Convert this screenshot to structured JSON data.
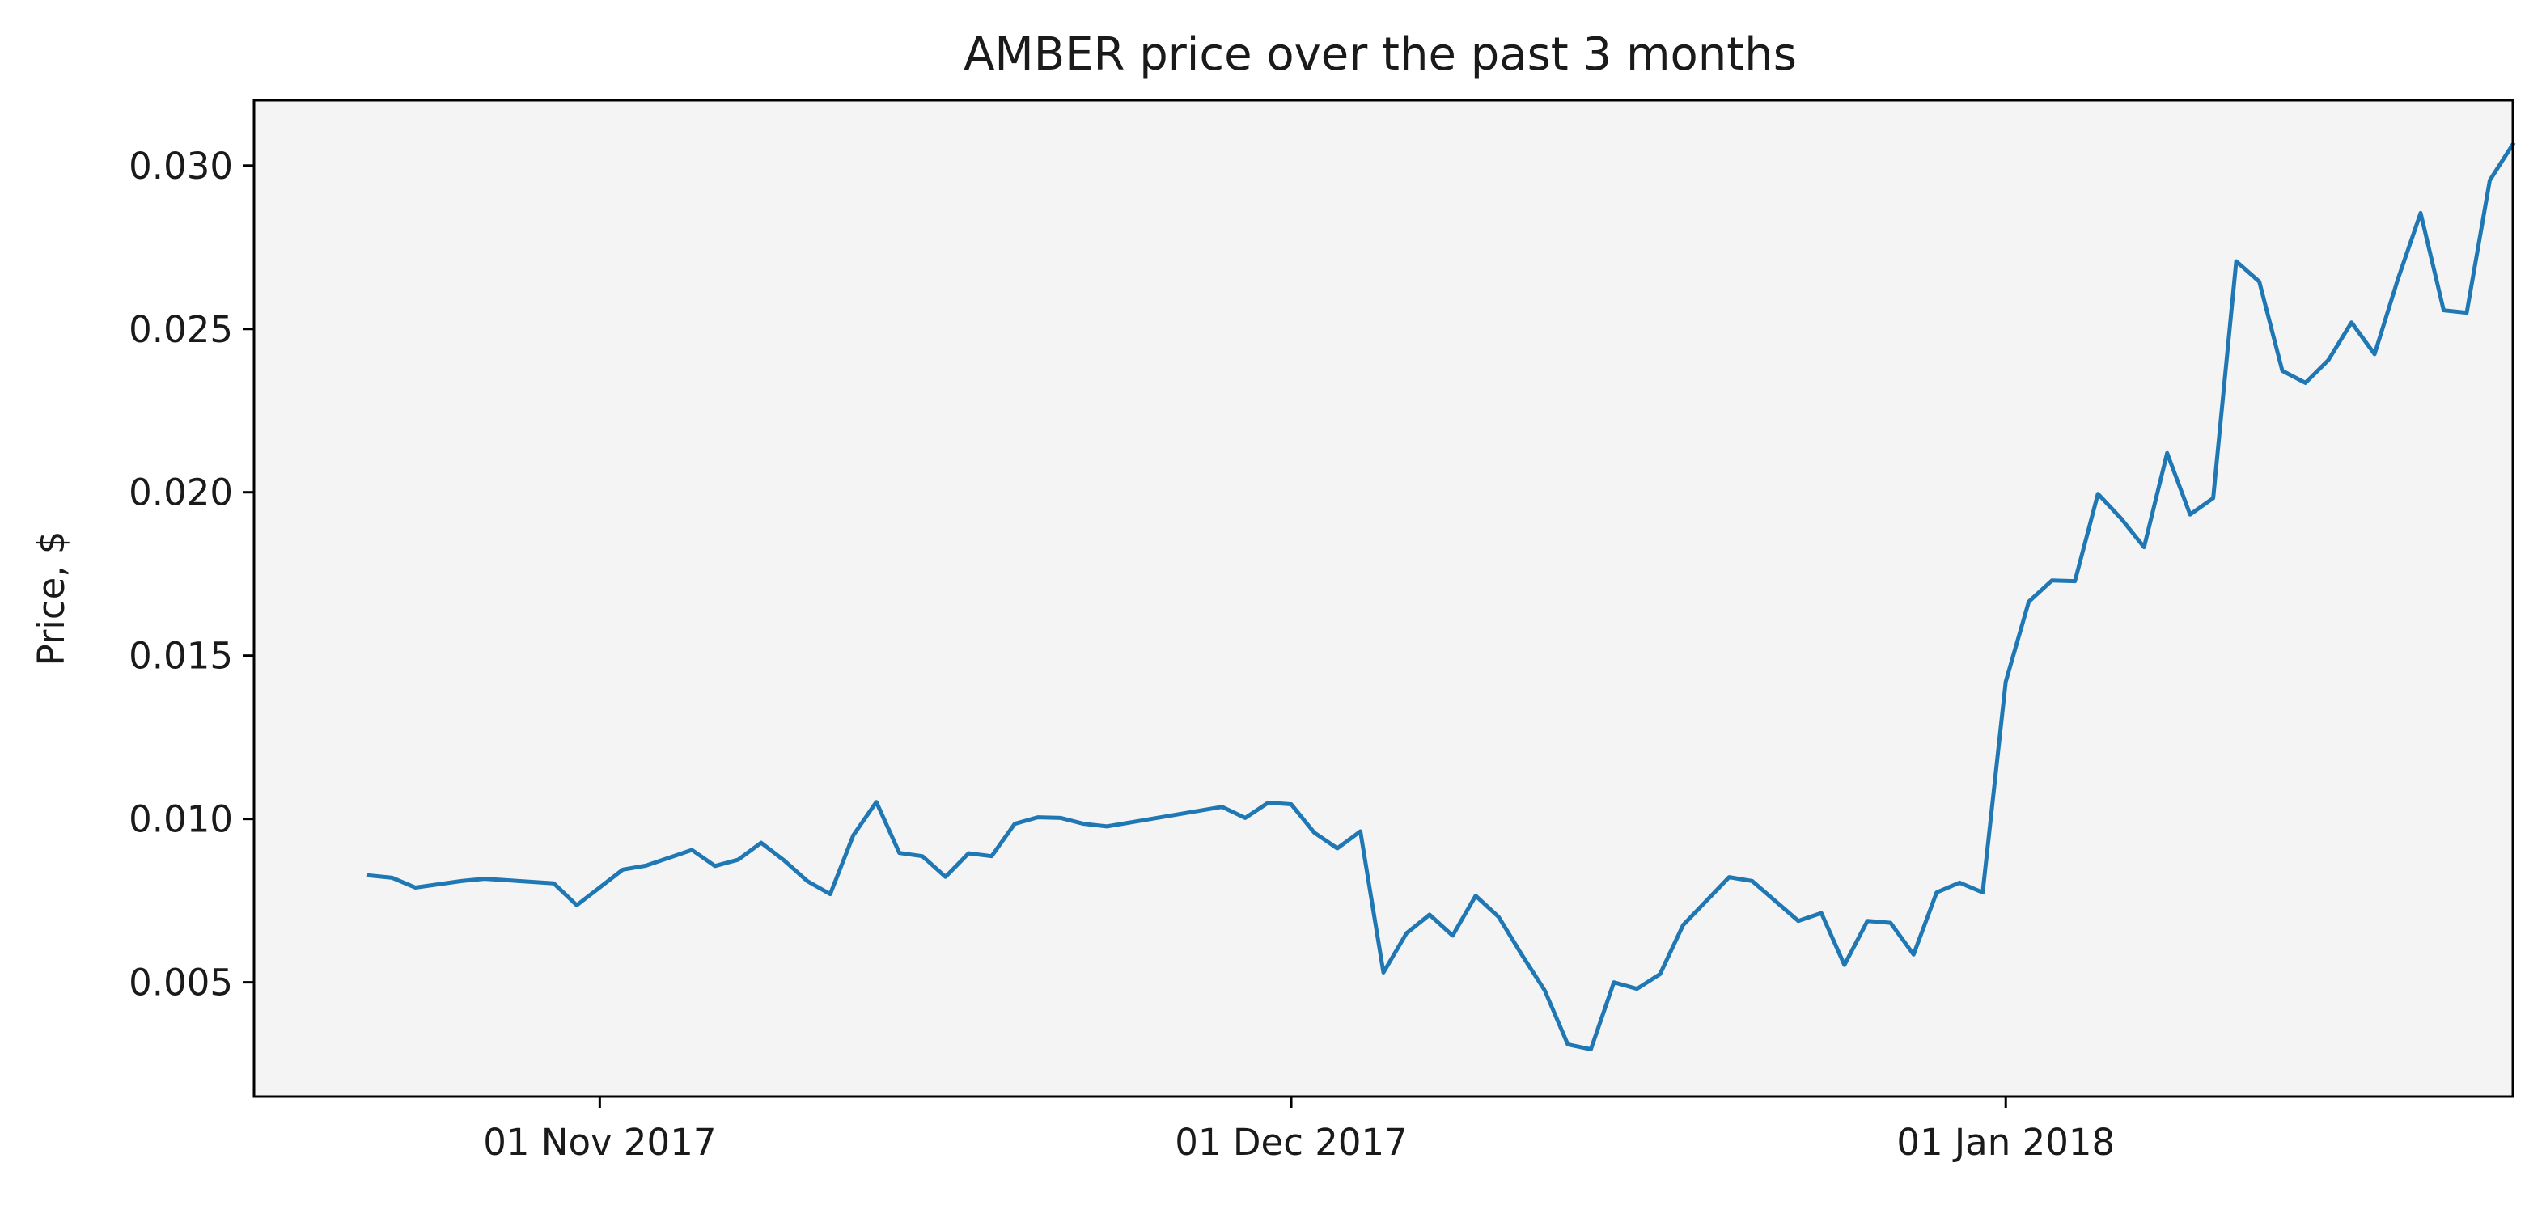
{
  "chart_data": {
    "type": "line",
    "title": "AMBER price over the past 3 months",
    "xlabel": "",
    "ylabel": "Price, $",
    "xlim": [
      "2017-10-17",
      "2018-01-23"
    ],
    "ylim": [
      0.0015,
      0.032
    ],
    "x_ticks": [
      {
        "date": "2017-11-01",
        "label": "01 Nov 2017"
      },
      {
        "date": "2017-12-01",
        "label": "01 Dec 2017"
      },
      {
        "date": "2018-01-01",
        "label": "01 Jan 2018"
      }
    ],
    "y_ticks": [
      {
        "value": 0.005,
        "label": "0.005"
      },
      {
        "value": 0.01,
        "label": "0.010"
      },
      {
        "value": 0.015,
        "label": "0.015"
      },
      {
        "value": 0.02,
        "label": "0.020"
      },
      {
        "value": 0.025,
        "label": "0.025"
      },
      {
        "value": 0.03,
        "label": "0.030"
      }
    ],
    "grid": false,
    "colors": {
      "line": "#1f77b4",
      "plot_background": "#f4f4f4",
      "axes": "#000000"
    },
    "series": [
      {
        "x": [
          "2017-10-22",
          "2017-10-23",
          "2017-10-24",
          "2017-10-26",
          "2017-10-27",
          "2017-10-30",
          "2017-10-31",
          "2017-11-02",
          "2017-11-03",
          "2017-11-05",
          "2017-11-06",
          "2017-11-07",
          "2017-11-08",
          "2017-11-09",
          "2017-11-10",
          "2017-11-11",
          "2017-11-12",
          "2017-11-13",
          "2017-11-14",
          "2017-11-15",
          "2017-11-16",
          "2017-11-17",
          "2017-11-18",
          "2017-11-19",
          "2017-11-20",
          "2017-11-21",
          "2017-11-22",
          "2017-11-23",
          "2017-11-28",
          "2017-11-29",
          "2017-11-30",
          "2017-12-01",
          "2017-12-02",
          "2017-12-03",
          "2017-12-04",
          "2017-12-05",
          "2017-12-06",
          "2017-12-07",
          "2017-12-08",
          "2017-12-09",
          "2017-12-10",
          "2017-12-11",
          "2017-12-12",
          "2017-12-13",
          "2017-12-14",
          "2017-12-15",
          "2017-12-16",
          "2017-12-17",
          "2017-12-18",
          "2017-12-20",
          "2017-12-21",
          "2017-12-23",
          "2017-12-24",
          "2017-12-25",
          "2017-12-26",
          "2017-12-27",
          "2017-12-28",
          "2017-12-29",
          "2017-12-30",
          "2017-12-31",
          "2018-01-01",
          "2018-01-02",
          "2018-01-03",
          "2018-01-04",
          "2018-01-05",
          "2018-01-06",
          "2018-01-07",
          "2018-01-08",
          "2018-01-09",
          "2018-01-10",
          "2018-01-11",
          "2018-01-12",
          "2018-01-13",
          "2018-01-14",
          "2018-01-15",
          "2018-01-16",
          "2018-01-17",
          "2018-01-18",
          "2018-01-19",
          "2018-01-20",
          "2018-01-21",
          "2018-01-22",
          "2018-01-23"
        ],
        "values": [
          0.00827,
          0.0082,
          0.0079,
          0.0081,
          0.00817,
          0.00803,
          0.00736,
          0.00845,
          0.00857,
          0.00905,
          0.00856,
          0.00875,
          0.00927,
          0.00873,
          0.0081,
          0.0077,
          0.0095,
          0.01052,
          0.00896,
          0.00886,
          0.00823,
          0.00895,
          0.00886,
          0.00985,
          0.01005,
          0.01003,
          0.00985,
          0.00977,
          0.01037,
          0.01003,
          0.0105,
          0.01045,
          0.00958,
          0.0091,
          0.00962,
          0.0053,
          0.0065,
          0.00707,
          0.00643,
          0.00765,
          0.007,
          0.00585,
          0.00475,
          0.0031,
          0.00295,
          0.005,
          0.0048,
          0.00525,
          0.00675,
          0.00822,
          0.0081,
          0.00688,
          0.00712,
          0.00553,
          0.00688,
          0.00682,
          0.00585,
          0.00775,
          0.00805,
          0.00775,
          0.0142,
          0.01665,
          0.0173,
          0.01728,
          0.01995,
          0.0192,
          0.01832,
          0.0212,
          0.01932,
          0.01982,
          0.02707,
          0.02645,
          0.02372,
          0.02335,
          0.02405,
          0.0252,
          0.02423,
          0.0265,
          0.02855,
          0.02557,
          0.0255,
          0.02955,
          0.03065
        ]
      }
    ]
  }
}
